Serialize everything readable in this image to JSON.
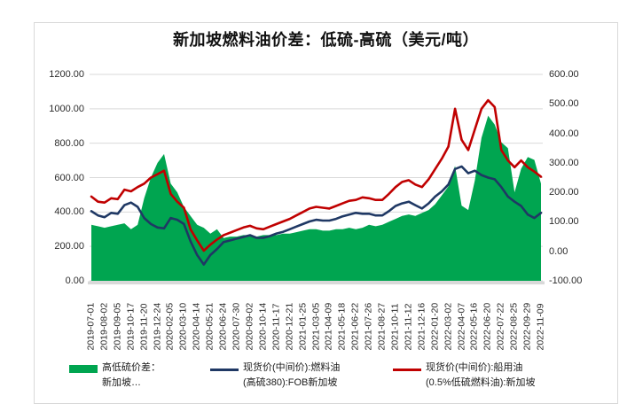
{
  "header": {
    "title": "新加坡燃料油价差：低硫-高硫（美元/吨）"
  },
  "colors": {
    "spread_green": "#00A550",
    "hsfo_blue": "#1F3864",
    "lsfo_red": "#C00000",
    "gridline": "#D9D9D9",
    "card_border": "#D9D9D9",
    "axis_text": "#2B2B2B"
  },
  "legend": {
    "entries": [
      {
        "swatch": "area",
        "color": "#00A550",
        "lines": [
          "高低硫价差：",
          "新加坡…"
        ]
      },
      {
        "swatch": "line",
        "color": "#1F3864",
        "lines": [
          "现货价(中间价):燃料油",
          "(高硫380):FOB新加坡"
        ]
      },
      {
        "swatch": "line",
        "color": "#C00000",
        "lines": [
          "现货价(中间价):船用油",
          "(0.5%低硫燃料油):新加坡"
        ]
      }
    ]
  },
  "chart_data": {
    "type": "area+line",
    "title": "新加坡燃料油价差：低硫-高硫（美元/吨）",
    "grid": "horizontal-only",
    "legend_position": "bottom",
    "left_axis": {
      "min": 0,
      "max": 1200,
      "step": 200,
      "labels": [
        "1200.00",
        "1000.00",
        "800.00",
        "600.00",
        "400.00",
        "200.00",
        "0.00"
      ]
    },
    "right_axis": {
      "min": -100,
      "max": 600,
      "step": 100,
      "labels": [
        "600.00",
        "500.00",
        "400.00",
        "300.00",
        "200.00",
        "100.00",
        "0.00",
        "-100.00"
      ]
    },
    "x_tick_labels": [
      "2019-07-01",
      "2019-08-02",
      "2019-09-05",
      "2019-10-17",
      "2019-11-20",
      "2019-12-24",
      "2020-02-05",
      "2020-03-10",
      "2020-04-14",
      "2020-05-21",
      "2020-06-24",
      "2020-07-30",
      "2020-09-02",
      "2020-10-14",
      "2020-11-17",
      "2020-12-21",
      "2021-01-25",
      "2021-03-05",
      "2021-04-09",
      "2021-05-18",
      "2021-06-22",
      "2021-07-26",
      "2021-08-27",
      "2021-10-11",
      "2021-11-12",
      "2021-12-16",
      "2022-01-20",
      "2022-03-02",
      "2022-04-07",
      "2022-05-16",
      "2022-06-20",
      "2022-07-22",
      "2022-08-25",
      "2022-09-29",
      "2022-11-09"
    ],
    "points_per_tick_interval": 2,
    "series": [
      {
        "name": "高低硫价差：新加坡…",
        "type": "area",
        "axis": "right",
        "color": "#00A550",
        "values": [
          90,
          85,
          80,
          85,
          90,
          95,
          75,
          90,
          180,
          250,
          300,
          330,
          230,
          200,
          150,
          120,
          90,
          80,
          60,
          75,
          45,
          50,
          50,
          55,
          55,
          50,
          55,
          55,
          55,
          60,
          60,
          65,
          70,
          75,
          75,
          70,
          70,
          75,
          75,
          80,
          75,
          80,
          90,
          85,
          90,
          100,
          110,
          120,
          125,
          120,
          130,
          140,
          160,
          190,
          220,
          290,
          155,
          140,
          240,
          385,
          460,
          430,
          370,
          350,
          200,
          280,
          320,
          310,
          230
        ]
      },
      {
        "name": "现货价(中间价):燃料油(高硫380):FOB新加坡",
        "type": "line",
        "axis": "left",
        "color": "#1F3864",
        "values": [
          405,
          380,
          370,
          395,
          390,
          440,
          455,
          430,
          365,
          330,
          310,
          305,
          365,
          355,
          330,
          230,
          150,
          95,
          150,
          185,
          225,
          235,
          245,
          255,
          265,
          250,
          250,
          260,
          275,
          285,
          300,
          315,
          330,
          345,
          355,
          350,
          350,
          360,
          375,
          385,
          395,
          390,
          390,
          380,
          380,
          405,
          435,
          450,
          460,
          440,
          420,
          450,
          490,
          520,
          560,
          650,
          665,
          625,
          640,
          615,
          600,
          590,
          545,
          490,
          460,
          435,
          385,
          365,
          395
        ]
      },
      {
        "name": "现货价(中间价):船用油(0.5%低硫燃料油):新加坡",
        "type": "line",
        "axis": "left",
        "color": "#C00000",
        "values": [
          490,
          460,
          455,
          480,
          475,
          530,
          520,
          545,
          565,
          600,
          620,
          640,
          505,
          460,
          425,
          300,
          235,
          175,
          210,
          240,
          265,
          280,
          295,
          310,
          320,
          305,
          300,
          315,
          330,
          345,
          360,
          380,
          400,
          420,
          430,
          425,
          420,
          435,
          450,
          465,
          470,
          485,
          480,
          470,
          470,
          505,
          545,
          575,
          585,
          560,
          545,
          590,
          650,
          710,
          780,
          1000,
          820,
          760,
          880,
          1000,
          1050,
          1010,
          760,
          700,
          660,
          700,
          660,
          635,
          605
        ]
      }
    ]
  }
}
